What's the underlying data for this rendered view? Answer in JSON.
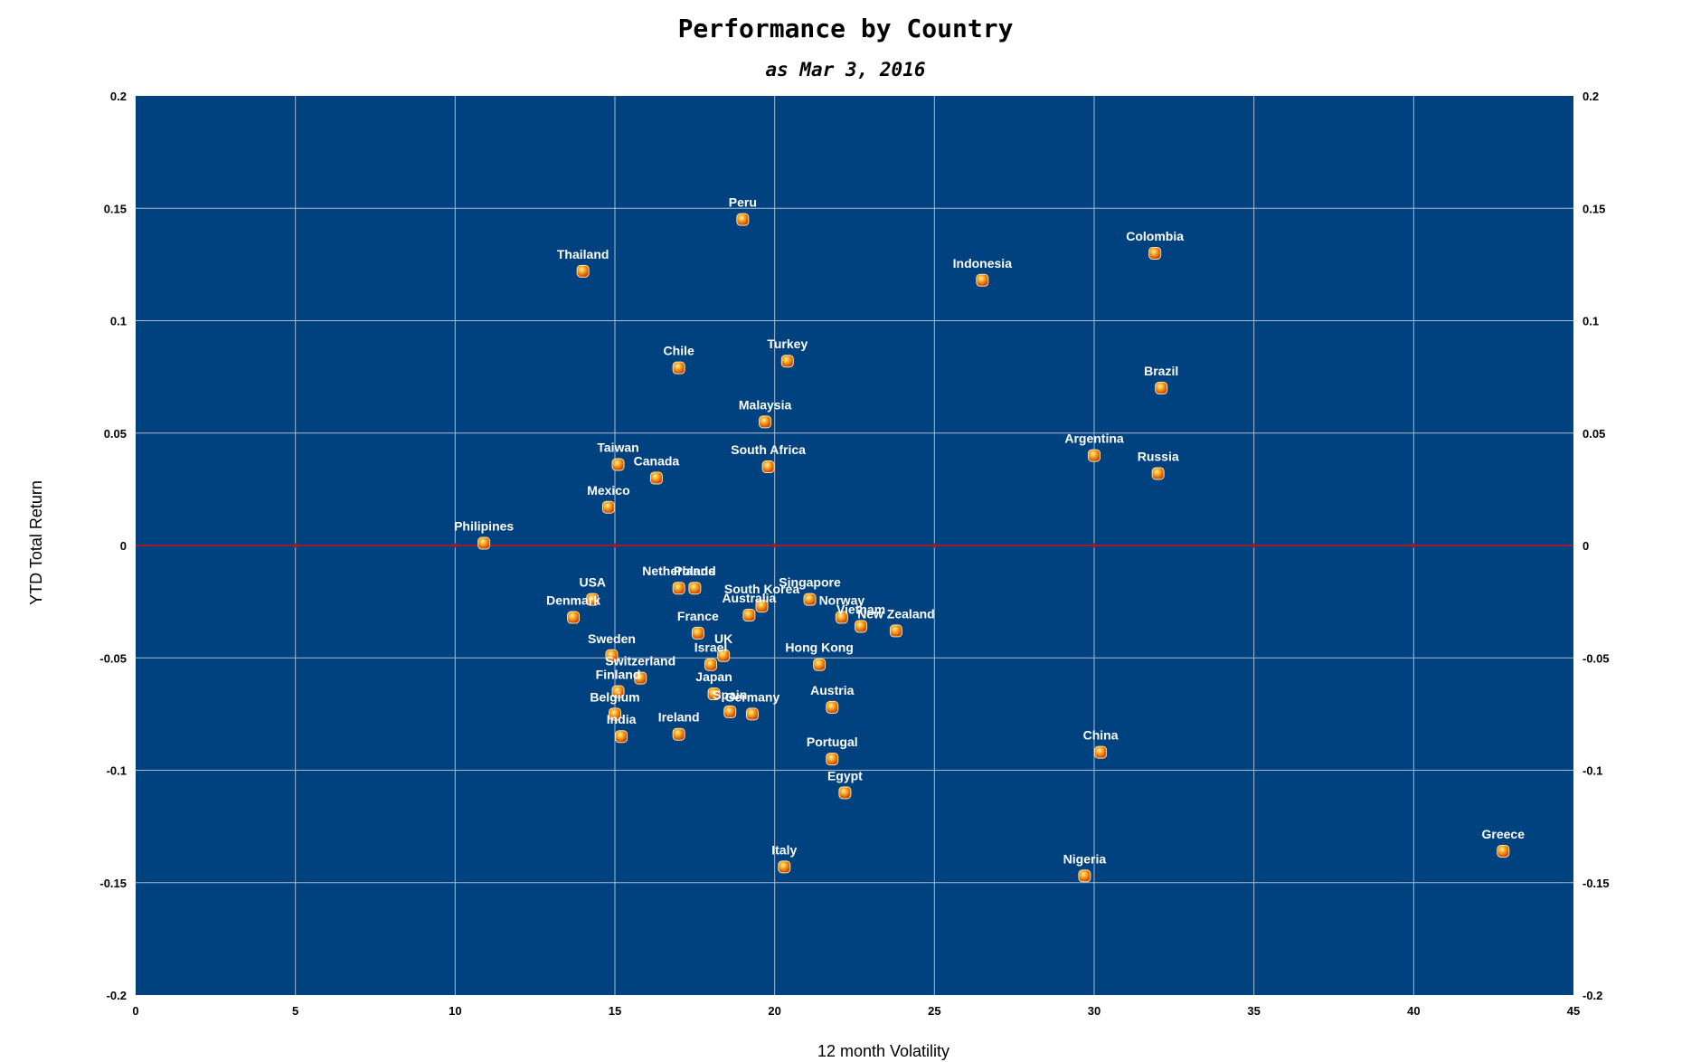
{
  "chart_data": {
    "type": "scatter",
    "title": "Performance by Country",
    "subtitle": "as Mar 3, 2016",
    "xlabel": "12 month Volatility",
    "ylabel": "YTD Total Return",
    "xlim": [
      0,
      45
    ],
    "ylim": [
      -0.2,
      0.2
    ],
    "x_ticks": [
      0,
      5,
      10,
      15,
      20,
      25,
      30,
      35,
      40,
      45
    ],
    "y_ticks": [
      0.2,
      0.15,
      0.1,
      0.05,
      0,
      -0.05,
      -0.1,
      -0.15,
      -0.2
    ],
    "y_tick_labels": [
      "0.2",
      "0.15",
      "0.1",
      "0.05",
      "0",
      "-0.05",
      "-0.1",
      "-0.15",
      "-0.2"
    ],
    "x_tick_labels": [
      "0",
      "5",
      "10",
      "15",
      "20",
      "25",
      "30",
      "35",
      "40",
      "45"
    ],
    "grid": true,
    "background_color": "#00427f",
    "grid_color": "#a9b9cc",
    "zero_line_color": "#9c1c2e",
    "marker_color": "#f08a1a",
    "points": [
      {
        "label": "Peru",
        "x": 19.0,
        "y": 0.145
      },
      {
        "label": "Thailand",
        "x": 14.0,
        "y": 0.122
      },
      {
        "label": "Indonesia",
        "x": 26.5,
        "y": 0.118
      },
      {
        "label": "Colombia",
        "x": 31.9,
        "y": 0.13
      },
      {
        "label": "Chile",
        "x": 17.0,
        "y": 0.079
      },
      {
        "label": "Turkey",
        "x": 20.4,
        "y": 0.082
      },
      {
        "label": "Brazil",
        "x": 32.1,
        "y": 0.07
      },
      {
        "label": "Malaysia",
        "x": 19.7,
        "y": 0.055
      },
      {
        "label": "Argentina",
        "x": 30.0,
        "y": 0.04
      },
      {
        "label": "Russia",
        "x": 32.0,
        "y": 0.032
      },
      {
        "label": "South Africa",
        "x": 19.8,
        "y": 0.035
      },
      {
        "label": "Taiwan",
        "x": 15.1,
        "y": 0.036
      },
      {
        "label": "Canada",
        "x": 16.3,
        "y": 0.03
      },
      {
        "label": "Mexico",
        "x": 14.8,
        "y": 0.017
      },
      {
        "label": "Philipines",
        "x": 10.9,
        "y": 0.001
      },
      {
        "label": "Netherlands",
        "x": 17.0,
        "y": -0.019
      },
      {
        "label": "Poland",
        "x": 17.5,
        "y": -0.019
      },
      {
        "label": "USA",
        "x": 14.3,
        "y": -0.024
      },
      {
        "label": "Singapore",
        "x": 21.1,
        "y": -0.024
      },
      {
        "label": "South Korea",
        "x": 19.6,
        "y": -0.027
      },
      {
        "label": "Australia",
        "x": 19.2,
        "y": -0.031
      },
      {
        "label": "Norway",
        "x": 22.1,
        "y": -0.032
      },
      {
        "label": "Vietnam",
        "x": 22.7,
        "y": -0.036
      },
      {
        "label": "New Zealand",
        "x": 23.8,
        "y": -0.038
      },
      {
        "label": "Denmark",
        "x": 13.7,
        "y": -0.032
      },
      {
        "label": "France",
        "x": 17.6,
        "y": -0.039
      },
      {
        "label": "UK",
        "x": 18.4,
        "y": -0.049
      },
      {
        "label": "Sweden",
        "x": 14.9,
        "y": -0.049
      },
      {
        "label": "Israel",
        "x": 18.0,
        "y": -0.053
      },
      {
        "label": "Hong Kong",
        "x": 21.4,
        "y": -0.053
      },
      {
        "label": "Switzerland",
        "x": 15.8,
        "y": -0.059
      },
      {
        "label": "Finland",
        "x": 15.1,
        "y": -0.065
      },
      {
        "label": "Japan",
        "x": 18.1,
        "y": -0.066
      },
      {
        "label": "Spain",
        "x": 18.6,
        "y": -0.074
      },
      {
        "label": "Germany",
        "x": 19.3,
        "y": -0.075
      },
      {
        "label": "Austria",
        "x": 21.8,
        "y": -0.072
      },
      {
        "label": "Belgium",
        "x": 15.0,
        "y": -0.075
      },
      {
        "label": "India",
        "x": 15.2,
        "y": -0.085
      },
      {
        "label": "Ireland",
        "x": 17.0,
        "y": -0.084
      },
      {
        "label": "China",
        "x": 30.2,
        "y": -0.092
      },
      {
        "label": "Portugal",
        "x": 21.8,
        "y": -0.095
      },
      {
        "label": "Egypt",
        "x": 22.2,
        "y": -0.11
      },
      {
        "label": "Italy",
        "x": 20.3,
        "y": -0.143
      },
      {
        "label": "Nigeria",
        "x": 29.7,
        "y": -0.147
      },
      {
        "label": "Greece",
        "x": 42.8,
        "y": -0.136
      }
    ]
  }
}
